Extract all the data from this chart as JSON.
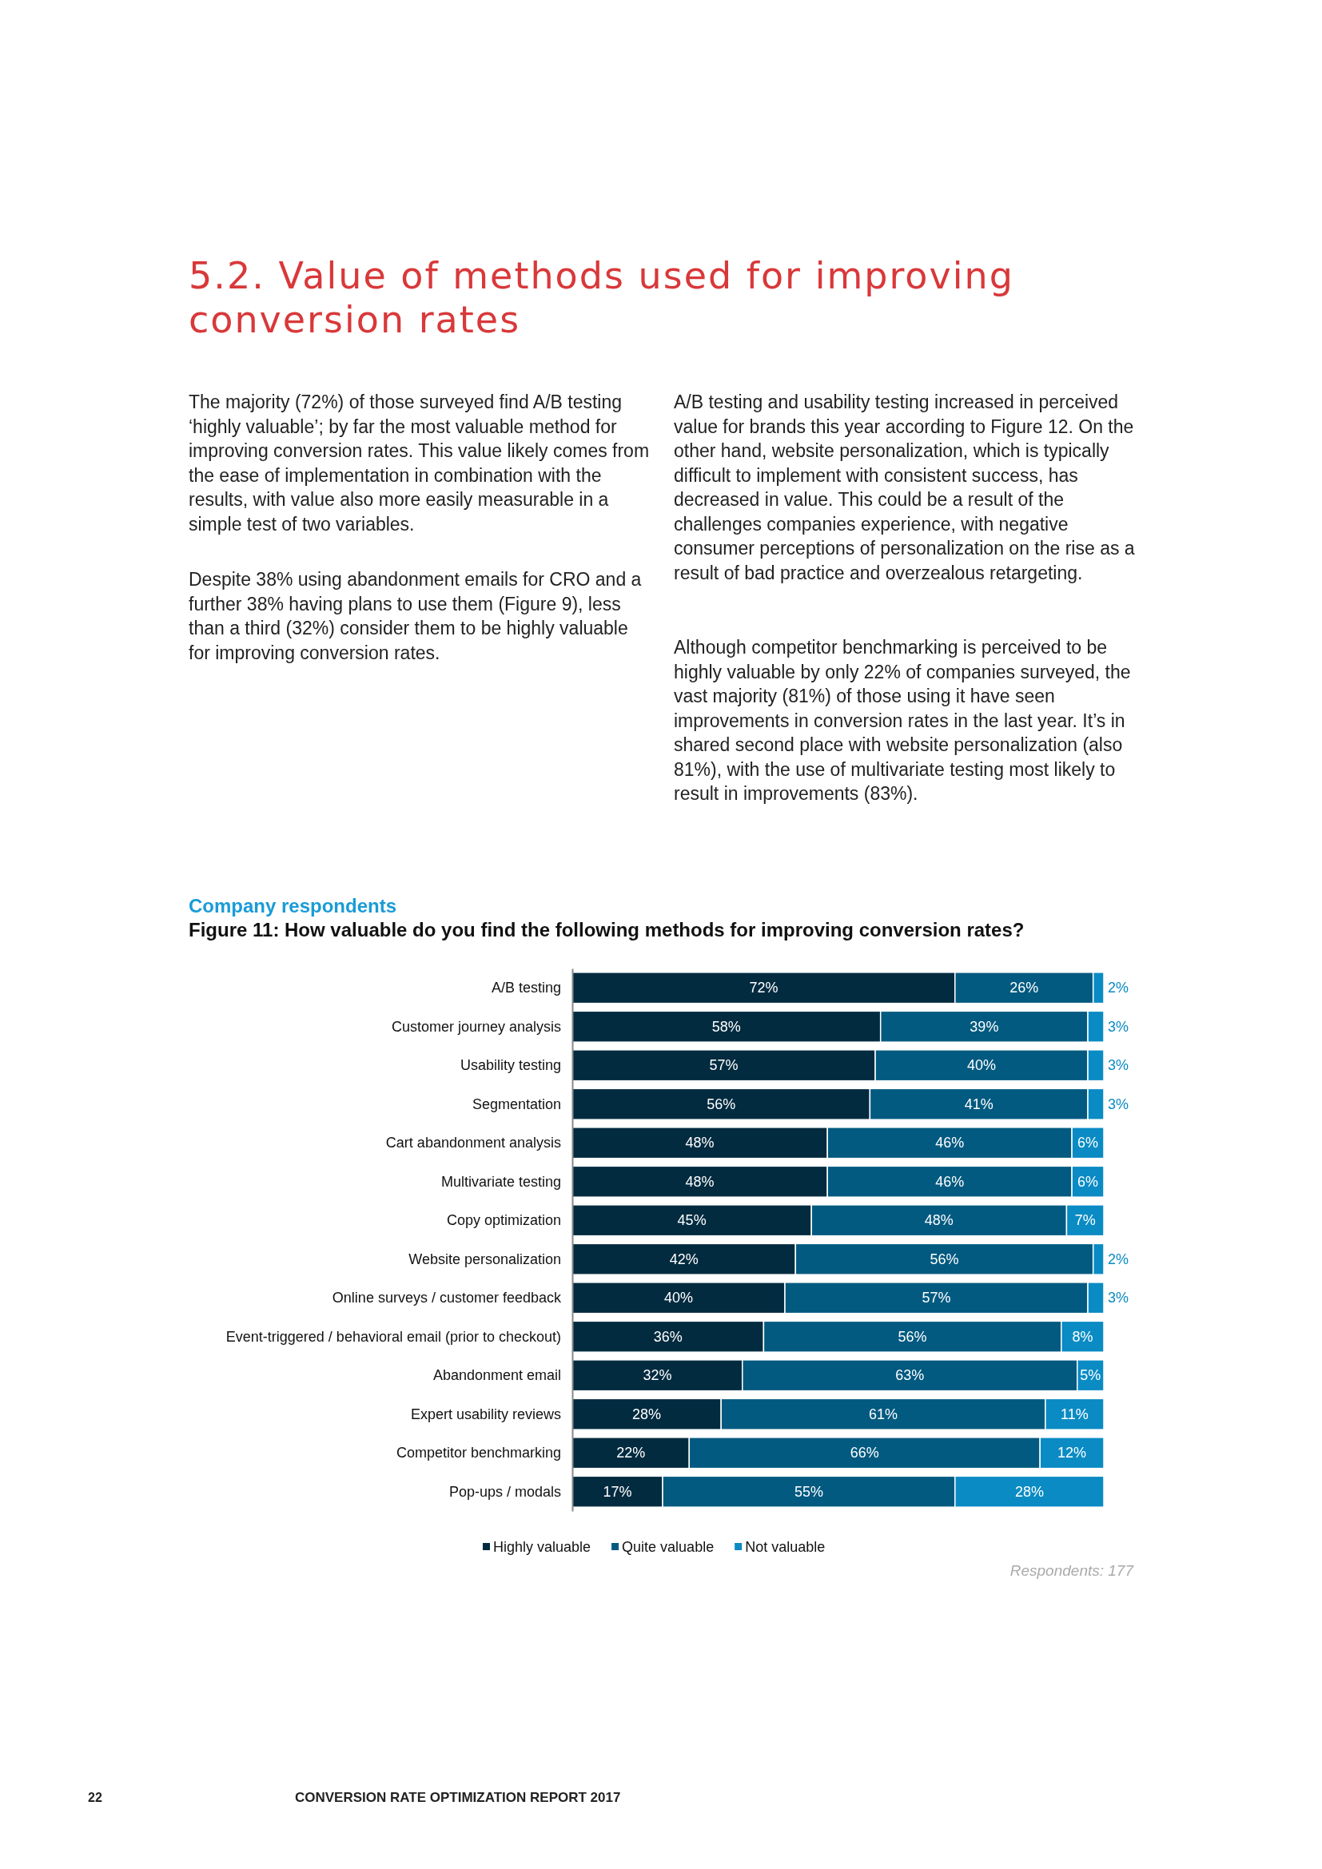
{
  "chart_data": {
    "type": "bar",
    "orientation": "horizontal",
    "stacked": true,
    "legend": "bottom",
    "title": "Figure 11: How valuable do you find the following methods for improving conversion rates?",
    "subtitle": "Company respondents",
    "categories": [
      "A/B testing",
      "Customer journey analysis",
      "Usability testing",
      "Segmentation",
      "Cart abandonment analysis",
      "Multivariate testing",
      "Copy optimization",
      "Website personalization",
      "Online surveys / customer feedback",
      "Event-triggered / behavioral email (prior to checkout)",
      "Abandonment email",
      "Expert usability reviews",
      "Competitor benchmarking",
      "Pop-ups / modals"
    ],
    "series": [
      {
        "name": "Highly valuable",
        "color": "#022b40",
        "values": [
          72,
          58,
          57,
          56,
          48,
          48,
          45,
          42,
          40,
          36,
          32,
          28,
          22,
          17
        ],
        "value_labels": [
          "72%",
          "58%",
          "57%",
          "56%",
          "48%",
          "48%",
          "45%",
          "42%",
          "40%",
          "36%",
          "32%",
          "28%",
          "22%",
          "17%"
        ]
      },
      {
        "name": "Quite valuable",
        "color": "#025a80",
        "values": [
          26,
          39,
          40,
          41,
          46,
          46,
          48,
          56,
          57,
          56,
          63,
          61,
          66,
          55
        ],
        "value_labels": [
          "26%",
          "39%",
          "40%",
          "41%",
          "46%",
          "46%",
          "48%",
          "56%",
          "57%",
          "56%",
          "63%",
          "61%",
          "66%",
          "55%"
        ]
      },
      {
        "name": "Not valuable",
        "color": "#0a8bc4",
        "values": [
          2,
          3,
          3,
          3,
          6,
          6,
          7,
          2,
          3,
          8,
          5,
          11,
          12,
          28
        ],
        "value_labels": [
          "2%",
          "3%",
          "3%",
          "3%",
          "6%",
          "6%",
          "7%",
          "2%",
          "3%",
          "8%",
          "5%",
          "11%",
          "12%",
          "28%"
        ]
      }
    ],
    "annotations": [
      "5.2. Value of methods used for improving conversion rates",
      "The majority (72%) of those surveyed find A/B testing ‘highly valuable’; by far the most valuable method for improving conversion rates. This value likely comes from the ease of implementation in combination with the results, with value also more easily measurable in a simple test of two variables.",
      "Despite 38% using abandonment emails for CRO and a further 38% having plans to use them (Figure 9), less than a third (32%) consider them to be highly valuable for improving conversion rates.",
      "A/B testing and usability testing increased in perceived value for brands this year according to Figure 12. On the other hand, website personalization, which is typically difficult to implement with consistent success, has decreased in value. This could be a result of the challenges companies experience, with negative consumer perceptions of personalization on the rise as a result of bad practice and overzealous retargeting.",
      "Although competitor benchmarking is perceived to be highly valuable by only 22% of companies surveyed, the vast majority (81%) of those using it have seen improvements in conversion rates in the last year. It’s in shared second place with website personalization (also 81%), with the use of multivariate testing most likely to result in improvements (83%).",
      "Respondents: 177",
      "22",
      "CONVERSION RATE OPTIMIZATION REPORT 2017"
    ]
  }
}
